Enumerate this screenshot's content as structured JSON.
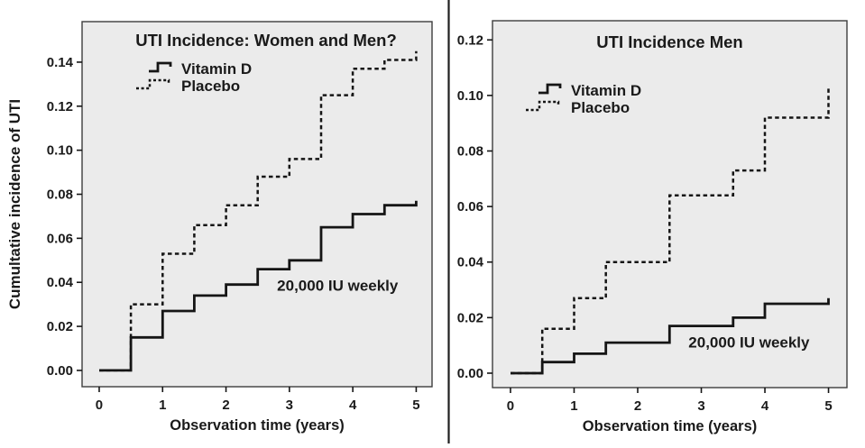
{
  "figure": {
    "description": "Two Kaplan-Meier style cumulative incidence step plots comparing Vitamin D vs Placebo",
    "colors": {
      "accent_pink": "#ea2f68",
      "line": "#151515",
      "panel_fill": "#ebebeb",
      "panel_border": "#3d3d3d",
      "divider": "#1f1f1f",
      "background": "#ffffff"
    }
  },
  "chart_data": [
    {
      "id": "women-and-men",
      "type": "line",
      "subtype": "step",
      "title": "UTI Incidence: Women and Men?",
      "xlabel": "Observation time (years)",
      "ylabel": "Cumultative incidence of UTI",
      "x_ticks": [
        "0",
        "1",
        "2",
        "3",
        "4",
        "5"
      ],
      "y_ticks": [
        "0.00",
        "0.02",
        "0.04",
        "0.06",
        "0.08",
        "0.10",
        "0.12",
        "0.14"
      ],
      "xlim": [
        -0.27,
        5.25
      ],
      "ylim": [
        -0.0074,
        0.1584
      ],
      "grid": false,
      "legend": {
        "position": "upper-left-inside",
        "entries": [
          {
            "label": "Vitamin D",
            "line_style": "solid"
          },
          {
            "label": "Placebo",
            "line_style": "dashed"
          }
        ]
      },
      "annotation": {
        "text": "20,000 IU weekly",
        "x": 3.76,
        "y": 0.0362
      },
      "series": [
        {
          "name": "Vitamin D",
          "line_style": "solid",
          "steps": [
            [
              0,
              0
            ],
            [
              0.5,
              0.015
            ],
            [
              1,
              0.027
            ],
            [
              1.5,
              0.034
            ],
            [
              2,
              0.039
            ],
            [
              2.5,
              0.046
            ],
            [
              3,
              0.05
            ],
            [
              3.5,
              0.065
            ],
            [
              4,
              0.071
            ],
            [
              4.5,
              0.075
            ],
            [
              5,
              0.077
            ]
          ]
        },
        {
          "name": "Placebo",
          "line_style": "dashed",
          "steps": [
            [
              0,
              0
            ],
            [
              0.5,
              0.03
            ],
            [
              1,
              0.053
            ],
            [
              1.5,
              0.066
            ],
            [
              2,
              0.075
            ],
            [
              2.5,
              0.088
            ],
            [
              3,
              0.096
            ],
            [
              3.5,
              0.125
            ],
            [
              4,
              0.137
            ],
            [
              4.5,
              0.141
            ],
            [
              5,
              0.145
            ]
          ]
        }
      ]
    },
    {
      "id": "men",
      "type": "line",
      "subtype": "step",
      "title": "UTI Incidence Men",
      "xlabel": "Observation time (years)",
      "x_ticks": [
        "0",
        "1",
        "2",
        "3",
        "4",
        "5"
      ],
      "y_ticks": [
        "0.00",
        "0.02",
        "0.04",
        "0.06",
        "0.08",
        "0.10",
        "0.12"
      ],
      "xlim": [
        -0.283,
        5.29
      ],
      "ylim": [
        -0.0052,
        0.1269
      ],
      "grid": false,
      "legend": {
        "position": "upper-left-inside",
        "entries": [
          {
            "label": "Vitamin D",
            "line_style": "solid"
          },
          {
            "label": "Placebo",
            "line_style": "dashed"
          }
        ]
      },
      "annotation": {
        "text": "20,000 IU weekly",
        "x": 3.75,
        "y": 0.0092
      },
      "series": [
        {
          "name": "Vitamin D",
          "line_style": "solid",
          "steps": [
            [
              0,
              0
            ],
            [
              0.5,
              0.004
            ],
            [
              1,
              0.007
            ],
            [
              1.5,
              0.011
            ],
            [
              2.5,
              0.017
            ],
            [
              3.5,
              0.02
            ],
            [
              4,
              0.025
            ],
            [
              5,
              0.027
            ]
          ]
        },
        {
          "name": "Placebo",
          "line_style": "dashed",
          "steps": [
            [
              0,
              0
            ],
            [
              0.5,
              0.016
            ],
            [
              1,
              0.027
            ],
            [
              1.5,
              0.04
            ],
            [
              2.5,
              0.064
            ],
            [
              3.5,
              0.073
            ],
            [
              4,
              0.092
            ],
            [
              5,
              0.103
            ]
          ]
        }
      ]
    }
  ]
}
